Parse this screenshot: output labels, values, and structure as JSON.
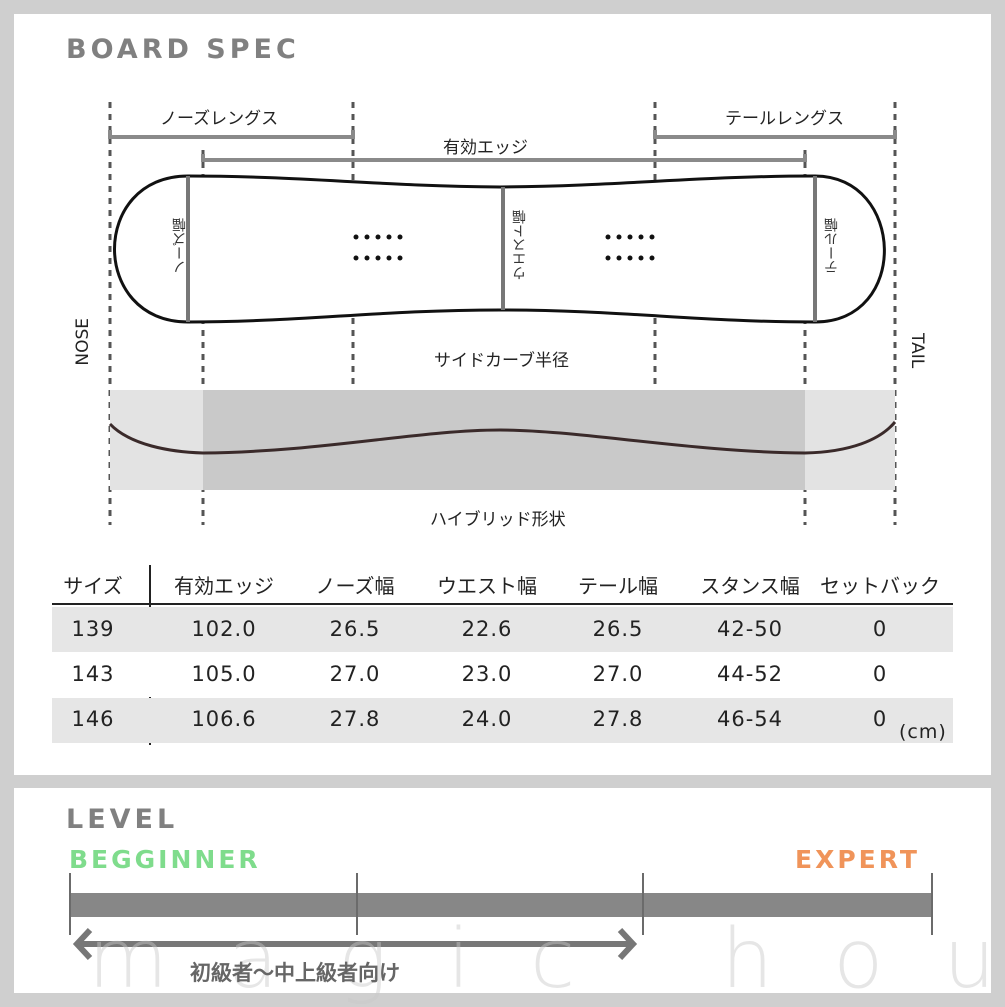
{
  "board_spec": {
    "title": "BOARD SPEC",
    "diagram": {
      "nose_length": "ノーズレングス",
      "effective_edge": "有効エッジ",
      "tail_length": "テールレングス",
      "nose_width": "ノーズ幅",
      "waist_width": "ウエスト幅",
      "tail_width": "テール幅",
      "sidecut_radius": "サイドカーブ半径",
      "nose": "NOSE",
      "tail": "TAIL",
      "profile": "ハイブリッド形状"
    },
    "table": {
      "headers": [
        "サイズ",
        "有効エッジ",
        "ノーズ幅",
        "ウエスト幅",
        "テール幅",
        "スタンス幅",
        "セットバック"
      ],
      "rows": [
        [
          "139",
          "102.0",
          "26.5",
          "22.6",
          "26.5",
          "42-50",
          "0"
        ],
        [
          "143",
          "105.0",
          "27.0",
          "23.0",
          "27.0",
          "44-52",
          "0"
        ],
        [
          "146",
          "106.6",
          "27.8",
          "24.0",
          "27.8",
          "46-54",
          "0"
        ]
      ],
      "unit": "(cm)"
    }
  },
  "level": {
    "title": "LEVEL",
    "beginner_label": "BEGGINNER",
    "expert_label": "EXPERT",
    "range_text": "初級者〜中上級者向け",
    "range_from": 0,
    "range_to": 0.66,
    "colors": {
      "beginner": "#7fdc8c",
      "expert": "#f0945a",
      "bar": "#878787"
    }
  },
  "watermark": "magic hour"
}
